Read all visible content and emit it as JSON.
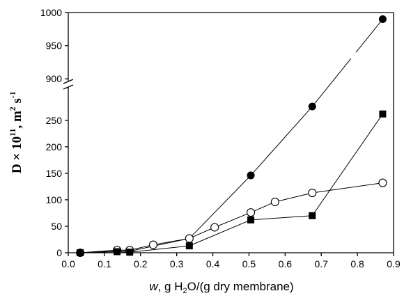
{
  "chart_data": {
    "type": "line",
    "x_axis": {
      "range": [
        0.0,
        0.9
      ],
      "ticks": [
        "0.0",
        "0.1",
        "0.2",
        "0.3",
        "0.4",
        "0.5",
        "0.6",
        "0.7",
        "0.8",
        "0.9"
      ],
      "label": {
        "italic": "w",
        "pre": ", g H",
        "sub": "2",
        "post": "O/(g dry membrane)"
      }
    },
    "y_axis": {
      "broken": true,
      "lower_range": [
        0,
        280
      ],
      "upper_range": [
        895,
        1000
      ],
      "lower_ticks": [
        "0",
        "50",
        "100",
        "150",
        "200",
        "250"
      ],
      "upper_ticks": [
        "900",
        "950",
        "1000"
      ],
      "label": {
        "a": "D × 10",
        "sup1": "11",
        "b": ", m",
        "sup2": "2",
        "c": " s",
        "sup3": "-1"
      }
    },
    "series": [
      {
        "marker": "filled-circle",
        "x": [
          0.033,
          0.135,
          0.17,
          0.335,
          0.505,
          0.675,
          0.87
        ],
        "y": [
          0,
          4,
          3,
          27,
          146,
          276,
          990
        ]
      },
      {
        "marker": "open-circle",
        "x": [
          0.033,
          0.135,
          0.17,
          0.235,
          0.335,
          0.405,
          0.505,
          0.572,
          0.675,
          0.87
        ],
        "y": [
          0,
          5,
          5,
          15,
          27,
          48,
          76,
          96,
          113,
          132
        ]
      },
      {
        "marker": "filled-square",
        "x": [
          0.033,
          0.135,
          0.17,
          0.335,
          0.505,
          0.675,
          0.87
        ],
        "y": [
          0,
          2,
          1,
          13,
          62,
          70,
          262
        ]
      }
    ]
  }
}
